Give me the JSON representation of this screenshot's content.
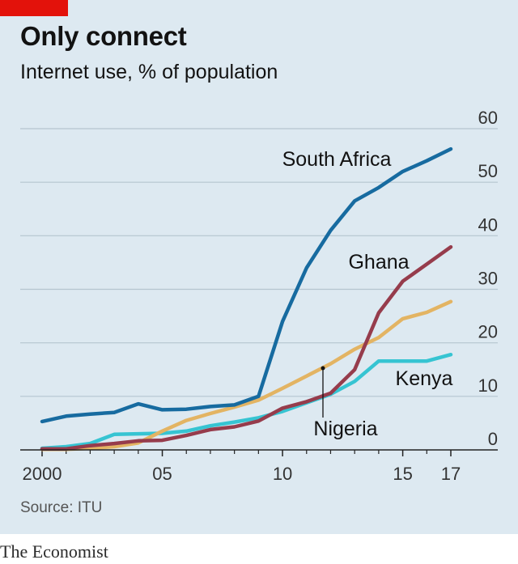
{
  "header": {
    "title": "Only connect",
    "subtitle": "Internet use, % of population"
  },
  "footer": {
    "source": "Source: ITU",
    "brand": "The Economist"
  },
  "colors": {
    "background": "#dde9f1",
    "accent_bar": "#e3120b",
    "gridline": "#b5c5d0"
  },
  "chart_data": {
    "type": "line",
    "title": "Only connect",
    "subtitle": "Internet use, % of population",
    "xlabel": "",
    "ylabel": "",
    "x": [
      2000,
      2001,
      2002,
      2003,
      2004,
      2005,
      2006,
      2007,
      2008,
      2009,
      2010,
      2011,
      2012,
      2013,
      2014,
      2015,
      2016,
      2017
    ],
    "xlim": [
      2000,
      2017
    ],
    "ylim": [
      0,
      60
    ],
    "x_ticks": [
      {
        "value": 2000,
        "label": "2000"
      },
      {
        "value": 2005,
        "label": "05"
      },
      {
        "value": 2010,
        "label": "10"
      },
      {
        "value": 2015,
        "label": "15"
      },
      {
        "value": 2017,
        "label": "17"
      }
    ],
    "y_ticks": [
      0,
      10,
      20,
      30,
      40,
      50,
      60
    ],
    "grid": true,
    "y_axis_side": "right",
    "series": [
      {
        "name": "South Africa",
        "color": "#176ba0",
        "values": [
          5.3,
          6.3,
          6.7,
          7.0,
          8.6,
          7.5,
          7.6,
          8.1,
          8.4,
          10.0,
          24.0,
          34.0,
          41.0,
          46.5,
          49.0,
          52.0,
          54.0,
          56.2
        ]
      },
      {
        "name": "Ghana",
        "color": "#963c4c",
        "values": [
          0.2,
          0.2,
          0.8,
          1.2,
          1.7,
          1.8,
          2.7,
          3.8,
          4.3,
          5.4,
          7.8,
          9.0,
          10.6,
          15.0,
          25.6,
          31.5,
          34.7,
          37.9
        ]
      },
      {
        "name": "Nigeria",
        "color": "#e3b463",
        "values": [
          0.1,
          0.1,
          0.3,
          0.6,
          1.3,
          3.5,
          5.5,
          6.8,
          8.0,
          9.3,
          11.5,
          13.8,
          16.1,
          18.8,
          21.0,
          24.5,
          25.7,
          27.7
        ]
      },
      {
        "name": "Kenya",
        "color": "#36c4d2",
        "values": [
          0.3,
          0.6,
          1.2,
          2.9,
          3.0,
          3.1,
          3.5,
          4.5,
          5.2,
          6.0,
          7.2,
          8.8,
          10.4,
          12.8,
          16.6,
          16.6,
          16.6,
          17.8
        ]
      }
    ],
    "annotations": [
      {
        "series": "South Africa",
        "text": "South Africa"
      },
      {
        "series": "Ghana",
        "text": "Ghana"
      },
      {
        "series": "Nigeria",
        "text": "Nigeria"
      },
      {
        "series": "Kenya",
        "text": "Kenya"
      }
    ]
  }
}
